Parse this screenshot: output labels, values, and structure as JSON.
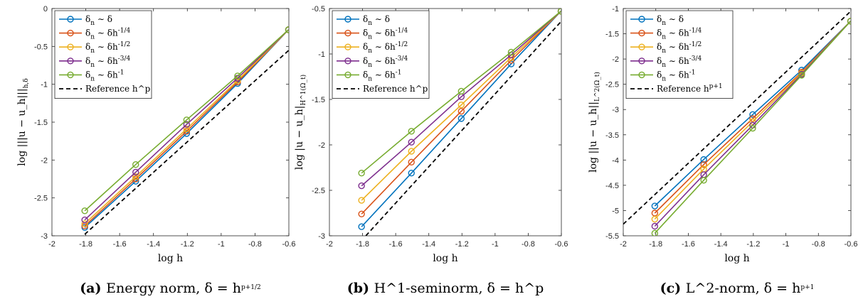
{
  "panels": [
    {
      "chart_data": {
        "type": "line",
        "xlabel": "log h",
        "ylabel": "log |||u − u_h|||_{h,δ}",
        "xlim": [
          -2,
          -0.6
        ],
        "ylim": [
          -3,
          0
        ],
        "xticks": [
          "-2",
          "-1.8",
          "-1.6",
          "-1.4",
          "-1.2",
          "-1",
          "-0.8",
          "-0.6"
        ],
        "yticks": [
          "-3",
          "-2.5",
          "-2",
          "-1.5",
          "-1",
          "-0.5",
          "0"
        ],
        "grid": false,
        "legend_position": "top-left",
        "x": [
          -1.806,
          -1.505,
          -1.204,
          -0.903,
          -0.602
        ],
        "series": [
          {
            "name": "δn ∼ δ",
            "color": "#0072BD",
            "values": [
              -2.89,
              -2.28,
              -1.65,
              -0.99,
              -0.28
            ]
          },
          {
            "name": "δn ∼ δh^{-1/4}",
            "color": "#D95319",
            "values": [
              -2.87,
              -2.25,
              -1.62,
              -0.97,
              -0.28
            ]
          },
          {
            "name": "δn ∼ δh^{-1/2}",
            "color": "#EDB120",
            "values": [
              -2.84,
              -2.22,
              -1.59,
              -0.95,
              -0.28
            ]
          },
          {
            "name": "δn ∼ δh^{-3/4}",
            "color": "#7E2F8E",
            "values": [
              -2.79,
              -2.16,
              -1.53,
              -0.92,
              -0.28
            ]
          },
          {
            "name": "δn ∼ δh^{-1}",
            "color": "#77AC30",
            "values": [
              -2.67,
              -2.06,
              -1.47,
              -0.89,
              -0.28
            ]
          },
          {
            "name": "Reference h^p",
            "color": "#000000",
            "dashed": true,
            "x": [
              -1.806,
              -0.6
            ],
            "values": [
              -2.98,
              -0.55
            ]
          }
        ]
      },
      "caption_label": "(a)",
      "caption_text": "Energy norm, δ = h^{p+1/2}"
    },
    {
      "chart_data": {
        "type": "line",
        "xlabel": "log h",
        "ylabel": "log |u − u_h|_{H^1(Ω_t)}",
        "xlim": [
          -2,
          -0.6
        ],
        "ylim": [
          -3,
          -0.5
        ],
        "xticks": [
          "-2",
          "-1.8",
          "-1.6",
          "-1.4",
          "-1.2",
          "-1",
          "-0.8",
          "-0.6"
        ],
        "yticks": [
          "-3",
          "-2.5",
          "-2",
          "-1.5",
          "-1",
          "-0.5"
        ],
        "grid": false,
        "legend_position": "top-left",
        "x": [
          -1.806,
          -1.505,
          -1.204,
          -0.903,
          -0.602
        ],
        "series": [
          {
            "name": "δn ∼ δ",
            "color": "#0072BD",
            "values": [
              -2.9,
              -2.31,
              -1.71,
              -1.11,
              -0.53
            ]
          },
          {
            "name": "δn ∼ δh^{-1/4}",
            "color": "#D95319",
            "values": [
              -2.76,
              -2.19,
              -1.63,
              -1.07,
              -0.53
            ]
          },
          {
            "name": "δn ∼ δh^{-1/2}",
            "color": "#EDB120",
            "values": [
              -2.61,
              -2.07,
              -1.56,
              -1.04,
              -0.53
            ]
          },
          {
            "name": "δn ∼ δh^{-3/4}",
            "color": "#7E2F8E",
            "values": [
              -2.45,
              -1.97,
              -1.47,
              -1.01,
              -0.53
            ]
          },
          {
            "name": "δn ∼ δh^{-1}",
            "color": "#77AC30",
            "values": [
              -2.31,
              -1.85,
              -1.41,
              -0.98,
              -0.53
            ]
          },
          {
            "name": "Reference h^p",
            "color": "#000000",
            "dashed": true,
            "x": [
              -1.78,
              -0.6
            ],
            "values": [
              -3.0,
              -0.64
            ]
          }
        ]
      },
      "caption_label": "(b)",
      "caption_text": "H^1-seminorm, δ = h^p"
    },
    {
      "chart_data": {
        "type": "line",
        "xlabel": "log h",
        "ylabel": "log ||u − u_h||_{L^2(Ω_t)}",
        "xlim": [
          -2,
          -0.6
        ],
        "ylim": [
          -5.5,
          -1
        ],
        "xticks": [
          "-2",
          "-1.8",
          "-1.6",
          "-1.4",
          "-1.2",
          "-1",
          "-0.8",
          "-0.6"
        ],
        "yticks": [
          "-5.5",
          "-5",
          "-4.5",
          "-4",
          "-3.5",
          "-3",
          "-2.5",
          "-2",
          "-1.5",
          "-1"
        ],
        "grid": false,
        "legend_position": "top-left",
        "x": [
          -1.806,
          -1.505,
          -1.204,
          -0.903,
          -0.602
        ],
        "series": [
          {
            "name": "δn ∼ δ",
            "color": "#0072BD",
            "values": [
              -4.91,
              -3.99,
              -3.1,
              -2.22,
              -1.25
            ]
          },
          {
            "name": "δn ∼ δh^{-1/4}",
            "color": "#D95319",
            "values": [
              -5.05,
              -4.09,
              -3.18,
              -2.26,
              -1.25
            ]
          },
          {
            "name": "δn ∼ δh^{-1/2}",
            "color": "#EDB120",
            "values": [
              -5.17,
              -4.18,
              -3.24,
              -2.28,
              -1.25
            ]
          },
          {
            "name": "δn ∼ δh^{-3/4}",
            "color": "#7E2F8E",
            "values": [
              -5.31,
              -4.29,
              -3.31,
              -2.3,
              -1.25
            ]
          },
          {
            "name": "δn ∼ δh^{-1}",
            "color": "#77AC30",
            "values": [
              -5.45,
              -4.4,
              -3.37,
              -2.32,
              -1.25
            ]
          },
          {
            "name": "Reference h^{p+1}",
            "color": "#000000",
            "dashed": true,
            "x": [
              -2,
              -0.6
            ],
            "values": [
              -5.27,
              -1.05
            ]
          }
        ]
      },
      "caption_label": "(c)",
      "caption_text": "L^2-norm, δ = h^{p+1}"
    }
  ]
}
